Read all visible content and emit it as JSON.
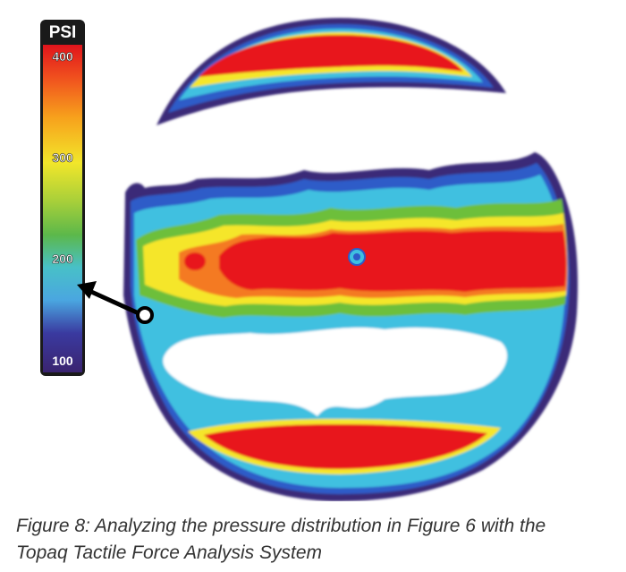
{
  "scale": {
    "unit": "PSI",
    "ticks": [
      "400",
      "300",
      "200",
      "100"
    ]
  },
  "caption": {
    "line1": "Figure 8: Analyzing the pressure distribution in Figure 6 with the",
    "line2": "Topaq Tactile Force Analysis System"
  },
  "colors": {
    "high": "#e8141e",
    "orange": "#f47a20",
    "yellow": "#f5e62a",
    "green": "#6dbf3b",
    "cyan": "#3fc0e0",
    "blue": "#2d5bc8",
    "low": "#3a2a78",
    "outline": "#2a2a6a"
  },
  "icons": {
    "pointer": "arrow-pointer-icon"
  }
}
